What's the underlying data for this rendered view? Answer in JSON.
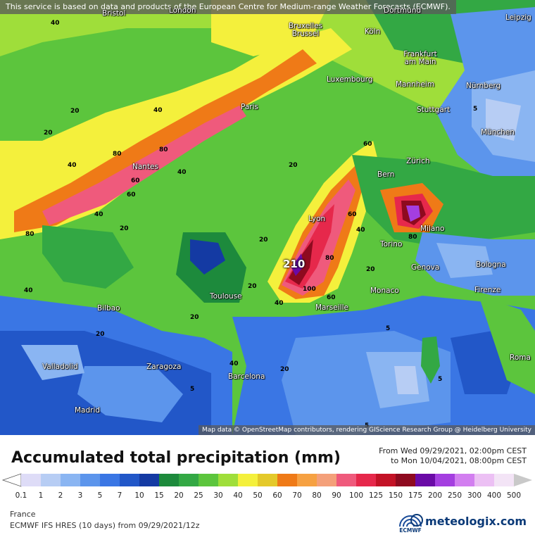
{
  "map": {
    "disclaimer": "This service is based on data and products of the European Centre for Medium-range Weather Forecasts (ECMWF).",
    "attribution": "Map data © OpenStreetMap contributors, rendering GIScience Research Group @ Heidelberg University",
    "peak_label": "210",
    "cities": [
      {
        "name": "Bristol"
      },
      {
        "name": "London"
      },
      {
        "name": "Dortmund"
      },
      {
        "name": "Leipzig"
      },
      {
        "name": "Bruxelles Brussel"
      },
      {
        "name": "Köln"
      },
      {
        "name": "Frankfurt am Main"
      },
      {
        "name": "Luxembourg"
      },
      {
        "name": "Mannheim"
      },
      {
        "name": "Nürnberg"
      },
      {
        "name": "Paris"
      },
      {
        "name": "Stuttgart"
      },
      {
        "name": "München"
      },
      {
        "name": "Nantes"
      },
      {
        "name": "Zürich"
      },
      {
        "name": "Bern"
      },
      {
        "name": "Lyon"
      },
      {
        "name": "Milano"
      },
      {
        "name": "Torino"
      },
      {
        "name": "Bologna"
      },
      {
        "name": "Genova"
      },
      {
        "name": "Monaco"
      },
      {
        "name": "Firenze"
      },
      {
        "name": "Toulouse"
      },
      {
        "name": "Marseille"
      },
      {
        "name": "Bilbao"
      },
      {
        "name": "Valladolid"
      },
      {
        "name": "Zaragoza"
      },
      {
        "name": "Barcelona"
      },
      {
        "name": "Roma"
      },
      {
        "name": "Madrid"
      }
    ],
    "contour_labels": [
      "40",
      "20",
      "60",
      "80",
      "40",
      "20",
      "20",
      "40",
      "60",
      "80",
      "40",
      "80",
      "60",
      "40",
      "20",
      "20",
      "40",
      "100",
      "80",
      "60",
      "60",
      "80",
      "40",
      "40",
      "20",
      "20",
      "20",
      "5",
      "5",
      "5",
      "5",
      "5",
      "20",
      "40",
      "20"
    ]
  },
  "legend": {
    "title": "Accumulated total precipitation (mm)",
    "period_from": "From Wed 09/29/2021, 02:00pm CEST",
    "period_to": "to Mon 10/04/2021, 08:00pm CEST",
    "scale": [
      {
        "label": "0.1",
        "color": "#dedcf7"
      },
      {
        "label": "1",
        "color": "#b7cdf4"
      },
      {
        "label": "2",
        "color": "#8ab5f2"
      },
      {
        "label": "3",
        "color": "#5c95ec"
      },
      {
        "label": "5",
        "color": "#3a76e4"
      },
      {
        "label": "7",
        "color": "#2257c8"
      },
      {
        "label": "10",
        "color": "#143aa3"
      },
      {
        "label": "15",
        "color": "#1d8a3c"
      },
      {
        "label": "20",
        "color": "#33a844"
      },
      {
        "label": "25",
        "color": "#5cc53d"
      },
      {
        "label": "30",
        "color": "#9fde3a"
      },
      {
        "label": "40",
        "color": "#f4f03c"
      },
      {
        "label": "50",
        "color": "#e4c92a"
      },
      {
        "label": "60",
        "color": "#ef7a17"
      },
      {
        "label": "70",
        "color": "#f6a142"
      },
      {
        "label": "80",
        "color": "#f4a07a"
      },
      {
        "label": "90",
        "color": "#ef5a7c"
      },
      {
        "label": "100",
        "color": "#e6284b"
      },
      {
        "label": "125",
        "color": "#c31226"
      },
      {
        "label": "150",
        "color": "#8e0a1f"
      },
      {
        "label": "175",
        "color": "#6a0aa6"
      },
      {
        "label": "200",
        "color": "#a43ee0"
      },
      {
        "label": "250",
        "color": "#d27ef0"
      },
      {
        "label": "300",
        "color": "#ecc0f4"
      },
      {
        "label": "400",
        "color": "#f3e4f6"
      },
      {
        "label": "500",
        "color": "#c9c9c9"
      }
    ],
    "region": "France",
    "model": "ECMWF IFS HRES (10 days) from 09/29/2021/12z",
    "ecmwf": "ECMWF",
    "brand": "meteologix.com"
  }
}
